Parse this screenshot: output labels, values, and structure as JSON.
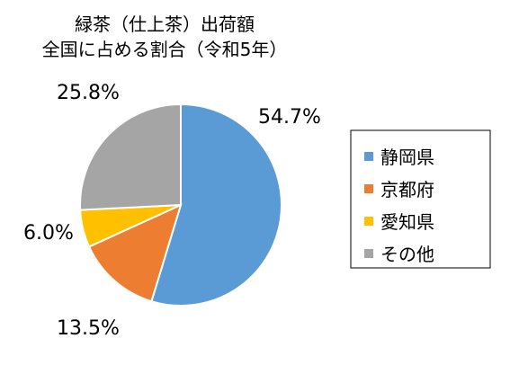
{
  "chart_data": {
    "type": "pie",
    "title": "緑茶（仕上茶）出荷額",
    "subtitle": "全国に占める割合（令和5年）",
    "legend_position": "right",
    "slices": [
      {
        "name": "静岡県",
        "value": 54.7,
        "label": "54.7%",
        "color": "#5b9bd5"
      },
      {
        "name": "京都府",
        "value": 13.5,
        "label": "13.5%",
        "color": "#ed7d31"
      },
      {
        "name": "愛知県",
        "value": 6.0,
        "label": "6.0%",
        "color": "#ffc000"
      },
      {
        "name": "その他",
        "value": 25.8,
        "label": "25.8%",
        "color": "#a5a5a5"
      }
    ]
  }
}
